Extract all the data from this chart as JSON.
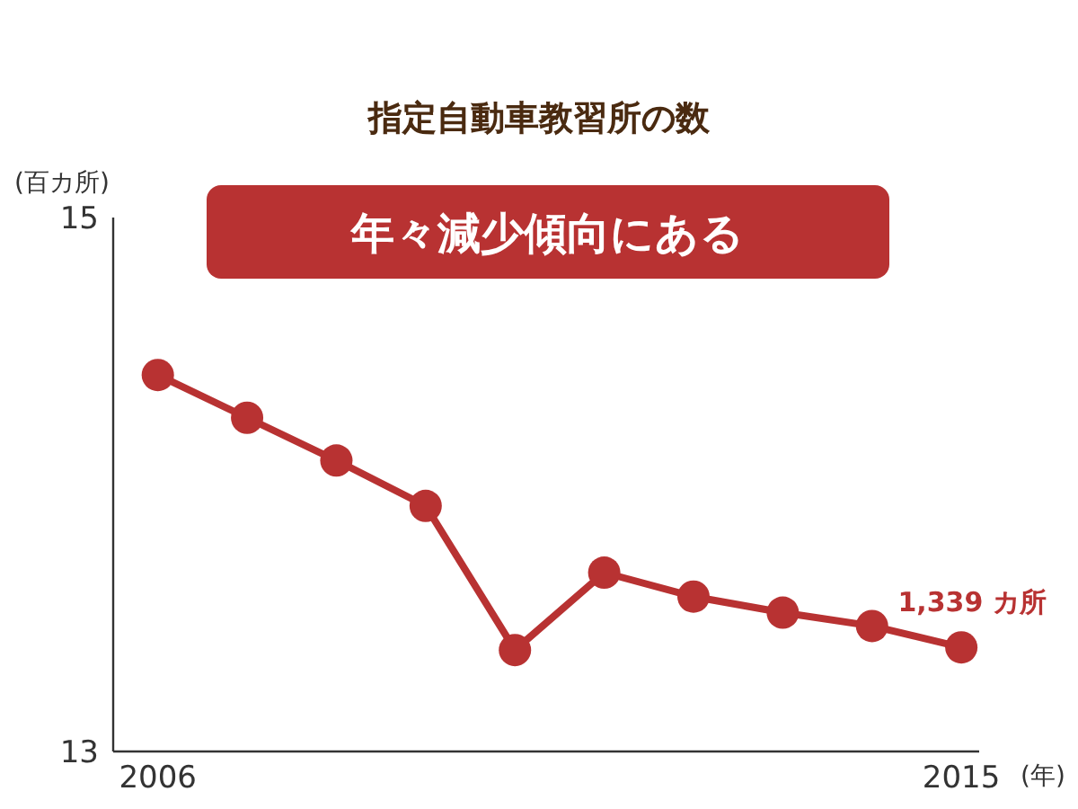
{
  "chart_data": {
    "type": "line",
    "title": "指定自動車教習所の数",
    "xlabel": "(年)",
    "ylabel": "(百カ所)",
    "x": [
      2006,
      2007,
      2008,
      2009,
      2010,
      2011,
      2012,
      2013,
      2014,
      2015
    ],
    "series": [
      {
        "color": "#b83232",
        "values": [
          14.41,
          14.25,
          14.09,
          13.92,
          13.38,
          13.67,
          13.58,
          13.52,
          13.47,
          13.39
        ]
      }
    ],
    "xlim": [
      2005.5,
      2015.2
    ],
    "xticks": [
      2006,
      2015
    ],
    "ylim": [
      13,
      15
    ],
    "yticks": [
      13,
      15
    ],
    "grid": false,
    "marker": "circle",
    "line_style": "solid",
    "annotations": [
      "年々減少傾向にある",
      {
        "text": "1,339 カ所",
        "x": 2015,
        "y": 13.39
      }
    ]
  }
}
